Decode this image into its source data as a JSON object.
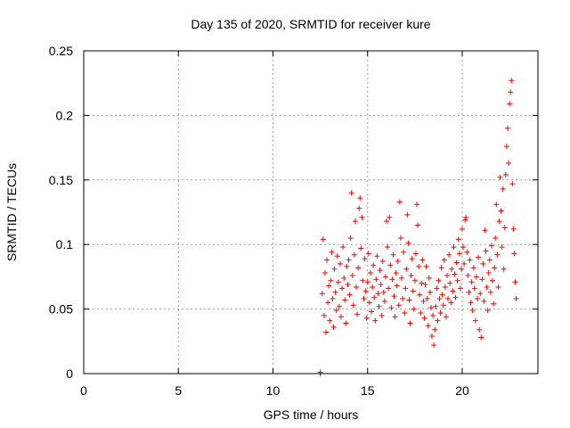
{
  "chart_data": {
    "type": "scatter",
    "title": "Day 135 of 2020, SRMTID for receiver kure",
    "xlabel": "GPS time / hours",
    "ylabel": "SRMTID / TECUs",
    "xlim": [
      0,
      24
    ],
    "ylim": [
      0,
      0.25
    ],
    "x_ticks": [
      0,
      5,
      10,
      15,
      20
    ],
    "x_tick_labels": [
      "0",
      "5",
      "10",
      "15",
      "20"
    ],
    "y_ticks": [
      0,
      0.05,
      0.1,
      0.15,
      0.2,
      0.25
    ],
    "y_tick_labels": [
      "0",
      "0.05",
      "0.1",
      "0.15",
      "0.2",
      "0.25"
    ],
    "grid": true,
    "marker": "plus",
    "series_color": "#ff0000",
    "points": [
      [
        12.5,
        0.0
      ],
      [
        12.5,
        0.001
      ],
      [
        12.6,
        0.062
      ],
      [
        12.65,
        0.104
      ],
      [
        12.7,
        0.045
      ],
      [
        12.75,
        0.078
      ],
      [
        12.8,
        0.032
      ],
      [
        12.85,
        0.088
      ],
      [
        12.9,
        0.055
      ],
      [
        12.95,
        0.068
      ],
      [
        13.0,
        0.041
      ],
      [
        13.05,
        0.072
      ],
      [
        13.1,
        0.094
      ],
      [
        13.15,
        0.058
      ],
      [
        13.2,
        0.036
      ],
      [
        13.25,
        0.081
      ],
      [
        13.3,
        0.063
      ],
      [
        13.35,
        0.049
      ],
      [
        13.4,
        0.091
      ],
      [
        13.45,
        0.071
      ],
      [
        13.5,
        0.052
      ],
      [
        13.55,
        0.085
      ],
      [
        13.6,
        0.044
      ],
      [
        13.65,
        0.066
      ],
      [
        13.7,
        0.098
      ],
      [
        13.75,
        0.074
      ],
      [
        13.8,
        0.057
      ],
      [
        13.85,
        0.039
      ],
      [
        13.9,
        0.083
      ],
      [
        13.95,
        0.069
      ],
      [
        14.0,
        0.088
      ],
      [
        14.05,
        0.061
      ],
      [
        14.1,
        0.105
      ],
      [
        14.15,
        0.14
      ],
      [
        14.2,
        0.076
      ],
      [
        14.25,
        0.053
      ],
      [
        14.3,
        0.092
      ],
      [
        14.35,
        0.118
      ],
      [
        14.4,
        0.067
      ],
      [
        14.45,
        0.046
      ],
      [
        14.5,
        0.082
      ],
      [
        14.55,
        0.128
      ],
      [
        14.6,
        0.136
      ],
      [
        14.65,
        0.097
      ],
      [
        14.7,
        0.121
      ],
      [
        14.75,
        0.072
      ],
      [
        14.8,
        0.058
      ],
      [
        14.85,
        0.089
      ],
      [
        14.9,
        0.064
      ],
      [
        14.95,
        0.043
      ],
      [
        15.0,
        0.071
      ],
      [
        15.05,
        0.093
      ],
      [
        15.1,
        0.055
      ],
      [
        15.15,
        0.078
      ],
      [
        15.2,
        0.048
      ],
      [
        15.25,
        0.067
      ],
      [
        15.3,
        0.084
      ],
      [
        15.35,
        0.059
      ],
      [
        15.4,
        0.041
      ],
      [
        15.45,
        0.073
      ],
      [
        15.5,
        0.091
      ],
      [
        15.55,
        0.062
      ],
      [
        15.6,
        0.052
      ],
      [
        15.65,
        0.08
      ],
      [
        15.7,
        0.069
      ],
      [
        15.75,
        0.045
      ],
      [
        15.8,
        0.087
      ],
      [
        15.85,
        0.063
      ],
      [
        15.9,
        0.056
      ],
      [
        15.95,
        0.075
      ],
      [
        16.0,
        0.118
      ],
      [
        16.05,
        0.098
      ],
      [
        16.1,
        0.066
      ],
      [
        16.15,
        0.121
      ],
      [
        16.2,
        0.084
      ],
      [
        16.25,
        0.051
      ],
      [
        16.3,
        0.073
      ],
      [
        16.35,
        0.092
      ],
      [
        16.4,
        0.06
      ],
      [
        16.45,
        0.044
      ],
      [
        16.5,
        0.078
      ],
      [
        16.55,
        0.068
      ],
      [
        16.6,
        0.087
      ],
      [
        16.65,
        0.053
      ],
      [
        16.7,
        0.133
      ],
      [
        16.75,
        0.105
      ],
      [
        16.8,
        0.074
      ],
      [
        16.85,
        0.058
      ],
      [
        16.9,
        0.094
      ],
      [
        16.95,
        0.047
      ],
      [
        17.0,
        0.066
      ],
      [
        17.05,
        0.081
      ],
      [
        17.1,
        0.123
      ],
      [
        17.15,
        0.101
      ],
      [
        17.2,
        0.057
      ],
      [
        17.25,
        0.039
      ],
      [
        17.3,
        0.076
      ],
      [
        17.35,
        0.089
      ],
      [
        17.4,
        0.064
      ],
      [
        17.45,
        0.05
      ],
      [
        17.5,
        0.072
      ],
      [
        17.55,
        0.093
      ],
      [
        17.6,
        0.131
      ],
      [
        17.65,
        0.115
      ],
      [
        17.7,
        0.083
      ],
      [
        17.75,
        0.061
      ],
      [
        17.8,
        0.047
      ],
      [
        17.85,
        0.07
      ],
      [
        17.9,
        0.088
      ],
      [
        17.95,
        0.056
      ],
      [
        18.0,
        0.043
      ],
      [
        18.05,
        0.069
      ],
      [
        18.1,
        0.083
      ],
      [
        18.15,
        0.058
      ],
      [
        18.2,
        0.037
      ],
      [
        18.25,
        0.074
      ],
      [
        18.3,
        0.063
      ],
      [
        18.35,
        0.051
      ],
      [
        18.4,
        0.029
      ],
      [
        18.45,
        0.045
      ],
      [
        18.5,
        0.022
      ],
      [
        18.55,
        0.034
      ],
      [
        18.6,
        0.052
      ],
      [
        18.65,
        0.066
      ],
      [
        18.7,
        0.041
      ],
      [
        18.75,
        0.072
      ],
      [
        18.8,
        0.058
      ],
      [
        18.85,
        0.047
      ],
      [
        18.9,
        0.082
      ],
      [
        18.95,
        0.061
      ],
      [
        19.0,
        0.053
      ],
      [
        19.05,
        0.088
      ],
      [
        19.1,
        0.067
      ],
      [
        19.15,
        0.044
      ],
      [
        19.2,
        0.076
      ],
      [
        19.25,
        0.058
      ],
      [
        19.3,
        0.092
      ],
      [
        19.35,
        0.07
      ],
      [
        19.4,
        0.055
      ],
      [
        19.45,
        0.081
      ],
      [
        19.5,
        0.064
      ],
      [
        19.55,
        0.098
      ],
      [
        19.6,
        0.077
      ],
      [
        19.65,
        0.059
      ],
      [
        19.7,
        0.086
      ],
      [
        19.75,
        0.072
      ],
      [
        19.8,
        0.104
      ],
      [
        19.85,
        0.093
      ],
      [
        19.9,
        0.066
      ],
      [
        19.95,
        0.081
      ],
      [
        20.0,
        0.112
      ],
      [
        20.05,
        0.098
      ],
      [
        20.1,
        0.085
      ],
      [
        20.15,
        0.119
      ],
      [
        20.2,
        0.121
      ],
      [
        20.25,
        0.094
      ],
      [
        20.3,
        0.076
      ],
      [
        20.35,
        0.063
      ],
      [
        20.4,
        0.088
      ],
      [
        20.45,
        0.055
      ],
      [
        20.5,
        0.071
      ],
      [
        20.55,
        0.049
      ],
      [
        20.6,
        0.082
      ],
      [
        20.65,
        0.066
      ],
      [
        20.7,
        0.041
      ],
      [
        20.75,
        0.075
      ],
      [
        20.8,
        0.058
      ],
      [
        20.85,
        0.09
      ],
      [
        20.9,
        0.034
      ],
      [
        20.95,
        0.062
      ],
      [
        21.0,
        0.028
      ],
      [
        21.05,
        0.073
      ],
      [
        21.1,
        0.085
      ],
      [
        21.15,
        0.056
      ],
      [
        21.2,
        0.111
      ],
      [
        21.25,
        0.095
      ],
      [
        21.3,
        0.067
      ],
      [
        21.35,
        0.049
      ],
      [
        21.4,
        0.078
      ],
      [
        21.45,
        0.088
      ],
      [
        21.5,
        0.063
      ],
      [
        21.55,
        0.099
      ],
      [
        21.6,
        0.072
      ],
      [
        21.65,
        0.054
      ],
      [
        21.7,
        0.082
      ],
      [
        21.75,
        0.105
      ],
      [
        21.8,
        0.131
      ],
      [
        21.85,
        0.092
      ],
      [
        21.9,
        0.067
      ],
      [
        21.95,
        0.118
      ],
      [
        22.0,
        0.152
      ],
      [
        22.05,
        0.126
      ],
      [
        22.1,
        0.098
      ],
      [
        22.15,
        0.143
      ],
      [
        22.2,
        0.081
      ],
      [
        22.25,
        0.113
      ],
      [
        22.3,
        0.154
      ],
      [
        22.35,
        0.176
      ],
      [
        22.4,
        0.19
      ],
      [
        22.45,
        0.163
      ],
      [
        22.5,
        0.209
      ],
      [
        22.55,
        0.218
      ],
      [
        22.6,
        0.227
      ],
      [
        22.65,
        0.147
      ],
      [
        22.7,
        0.112
      ],
      [
        22.75,
        0.093
      ],
      [
        22.8,
        0.071
      ],
      [
        22.85,
        0.058
      ]
    ]
  }
}
